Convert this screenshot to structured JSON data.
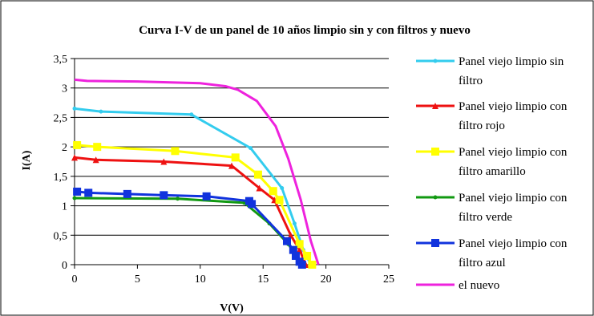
{
  "chart_data": {
    "type": "line",
    "title": "Curva I-V de un panel de 10 años limpio sin y con  filtros y nuevo",
    "xlabel": "V(V)",
    "ylabel": "I(A)",
    "xlim": [
      0,
      25
    ],
    "ylim": [
      0,
      3.5
    ],
    "x_ticks": [
      "0",
      "5",
      "10",
      "15",
      "20",
      "25"
    ],
    "y_ticks": [
      "0",
      "0,5",
      "1",
      "1,5",
      "2",
      "2,5",
      "3",
      "3,5"
    ],
    "grid": "horizontal",
    "legend_position": "right",
    "series": [
      {
        "name": "Panel viejo limpio sin filtro",
        "color": "#33ccee",
        "marker": "circle",
        "x": [
          0,
          2.1,
          9.3,
          14,
          16.5,
          17.5,
          18.2,
          18.8
        ],
        "y": [
          2.65,
          2.6,
          2.55,
          1.98,
          1.3,
          0.7,
          0.25,
          0
        ]
      },
      {
        "name": "Panel viejo limpio con filtro rojo",
        "color": "#ee1111",
        "marker": "triangle",
        "x": [
          0,
          1.7,
          7.1,
          12.5,
          14.7,
          15.9,
          17.2,
          17.9,
          18.4
        ],
        "y": [
          1.82,
          1.78,
          1.75,
          1.68,
          1.3,
          1.1,
          0.5,
          0.25,
          0
        ]
      },
      {
        "name": "Panel viejo limpio con filtro amarillo",
        "color": "#ffff00",
        "marker": "square",
        "x": [
          0.2,
          1.8,
          8,
          12.8,
          14.6,
          15.8,
          16.3,
          17.9,
          18.5,
          18.9
        ],
        "y": [
          2.03,
          2.0,
          1.93,
          1.82,
          1.53,
          1.25,
          1.1,
          0.35,
          0.15,
          0
        ]
      },
      {
        "name": "Panel viejo limpio con filtro verde",
        "color": "#119911",
        "marker": "circle",
        "x": [
          0,
          8.2,
          13.5,
          15.5,
          17,
          18.1
        ],
        "y": [
          1.13,
          1.12,
          1.05,
          0.7,
          0.35,
          0
        ]
      },
      {
        "name": "Panel viejo limpio con filtro azul",
        "color": "#1133dd",
        "marker": "square",
        "x": [
          0.2,
          1.1,
          4.2,
          7.1,
          10.5,
          13.9,
          14.1,
          16.9,
          17.4,
          17.6,
          17.9,
          18.1
        ],
        "y": [
          1.24,
          1.22,
          1.2,
          1.18,
          1.16,
          1.08,
          1.03,
          0.4,
          0.25,
          0.15,
          0.05,
          0
        ]
      },
      {
        "name": "el nuevo",
        "color": "#ee22dd",
        "marker": "none",
        "x": [
          0,
          1,
          5,
          10,
          12,
          13,
          14.5,
          16,
          17,
          18,
          18.8,
          19.4
        ],
        "y": [
          3.14,
          3.12,
          3.11,
          3.08,
          3.03,
          2.97,
          2.78,
          2.35,
          1.8,
          1.1,
          0.4,
          0
        ]
      }
    ]
  }
}
